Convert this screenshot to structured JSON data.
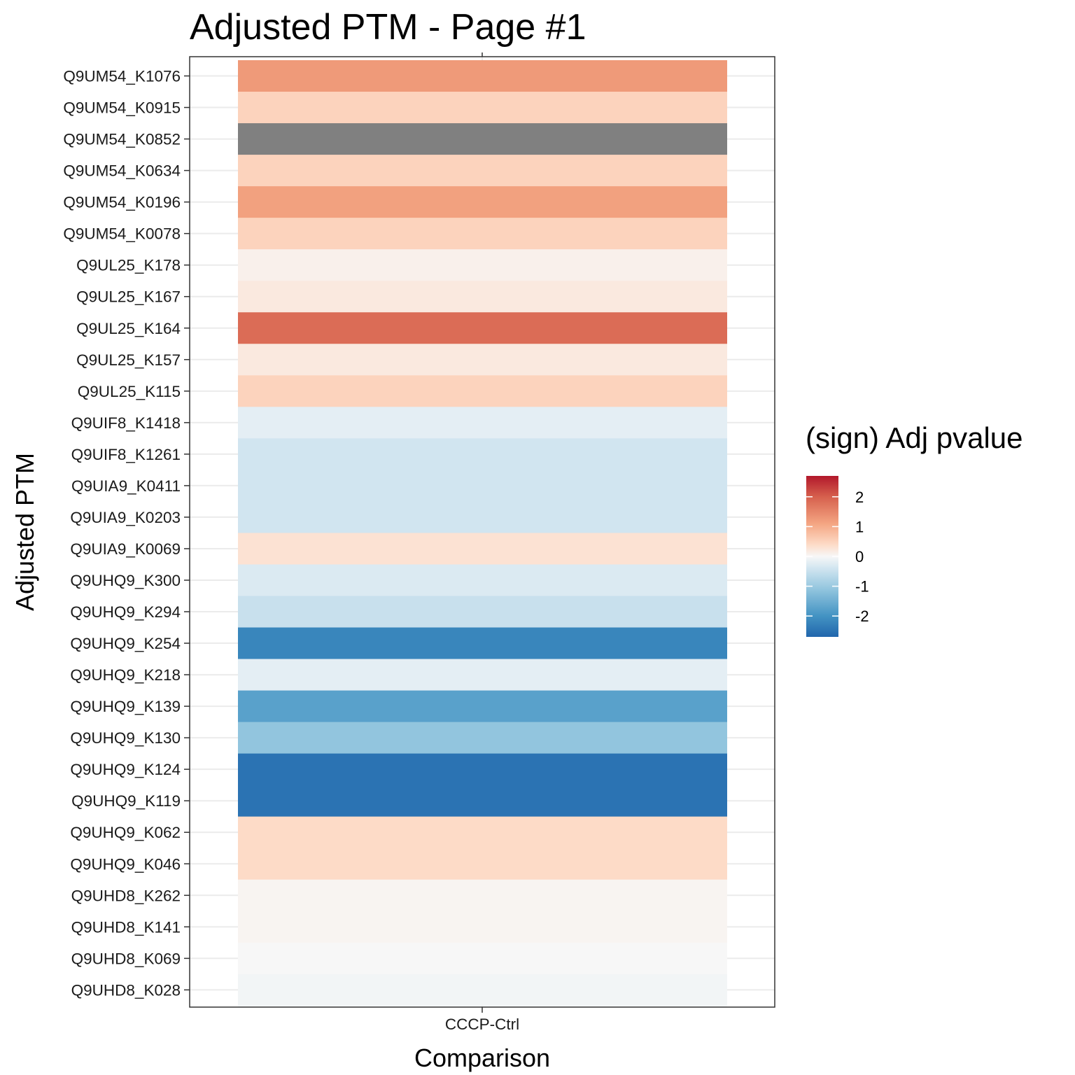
{
  "chart_data": {
    "type": "heatmap",
    "title": "Adjusted PTM - Page #1",
    "xlabel": "Comparison",
    "ylabel": "Adjusted PTM",
    "categories": [
      "CCCP-Ctrl"
    ],
    "rows": [
      {
        "label": "Q9UM54_K1076",
        "value": 1.25
      },
      {
        "label": "Q9UM54_K0915",
        "value": 0.5
      },
      {
        "label": "Q9UM54_K0852",
        "value": null
      },
      {
        "label": "Q9UM54_K0634",
        "value": 0.5
      },
      {
        "label": "Q9UM54_K0196",
        "value": 1.15
      },
      {
        "label": "Q9UM54_K0078",
        "value": 0.5
      },
      {
        "label": "Q9UL25_K178",
        "value": 0.1
      },
      {
        "label": "Q9UL25_K167",
        "value": 0.2
      },
      {
        "label": "Q9UL25_K164",
        "value": 1.85
      },
      {
        "label": "Q9UL25_K157",
        "value": 0.2
      },
      {
        "label": "Q9UL25_K115",
        "value": 0.5
      },
      {
        "label": "Q9UIF8_K1418",
        "value": -0.2
      },
      {
        "label": "Q9UIF8_K1261",
        "value": -0.4
      },
      {
        "label": "Q9UIA9_K0411",
        "value": -0.4
      },
      {
        "label": "Q9UIA9_K0203",
        "value": -0.4
      },
      {
        "label": "Q9UIA9_K0069",
        "value": 0.3
      },
      {
        "label": "Q9UHQ9_K300",
        "value": -0.3
      },
      {
        "label": "Q9UHQ9_K294",
        "value": -0.5
      },
      {
        "label": "Q9UHQ9_K254",
        "value": -2.2
      },
      {
        "label": "Q9UHQ9_K218",
        "value": -0.2
      },
      {
        "label": "Q9UHQ9_K139",
        "value": -1.75
      },
      {
        "label": "Q9UHQ9_K130",
        "value": -1.1
      },
      {
        "label": "Q9UHQ9_K124",
        "value": -2.5
      },
      {
        "label": "Q9UHQ9_K119",
        "value": -2.5
      },
      {
        "label": "Q9UHQ9_K062",
        "value": 0.4
      },
      {
        "label": "Q9UHQ9_K046",
        "value": 0.4
      },
      {
        "label": "Q9UHD8_K262",
        "value": 0.05
      },
      {
        "label": "Q9UHD8_K141",
        "value": 0.05
      },
      {
        "label": "Q9UHD8_K069",
        "value": 0.0
      },
      {
        "label": "Q9UHD8_K028",
        "value": -0.05
      }
    ],
    "legend": {
      "title": "(sign) Adj pvalue",
      "position": "right",
      "ticks": [
        2,
        1,
        0,
        -1,
        -2
      ],
      "range": [
        -2.7,
        2.7
      ]
    },
    "colors": {
      "low": "#2166AC",
      "mid": "#F7F7F7",
      "high": "#B2182B",
      "na": "#808080",
      "gradient": [
        [
          -2.7,
          "#2166AC"
        ],
        [
          -2.0,
          "#4393C3"
        ],
        [
          -1.1,
          "#92C5DE"
        ],
        [
          -0.4,
          "#D1E5F0"
        ],
        [
          0.0,
          "#F7F7F7"
        ],
        [
          0.4,
          "#FDDBC7"
        ],
        [
          1.1,
          "#F4A582"
        ],
        [
          2.0,
          "#D6604D"
        ],
        [
          2.7,
          "#B2182B"
        ]
      ]
    },
    "grid": true
  }
}
